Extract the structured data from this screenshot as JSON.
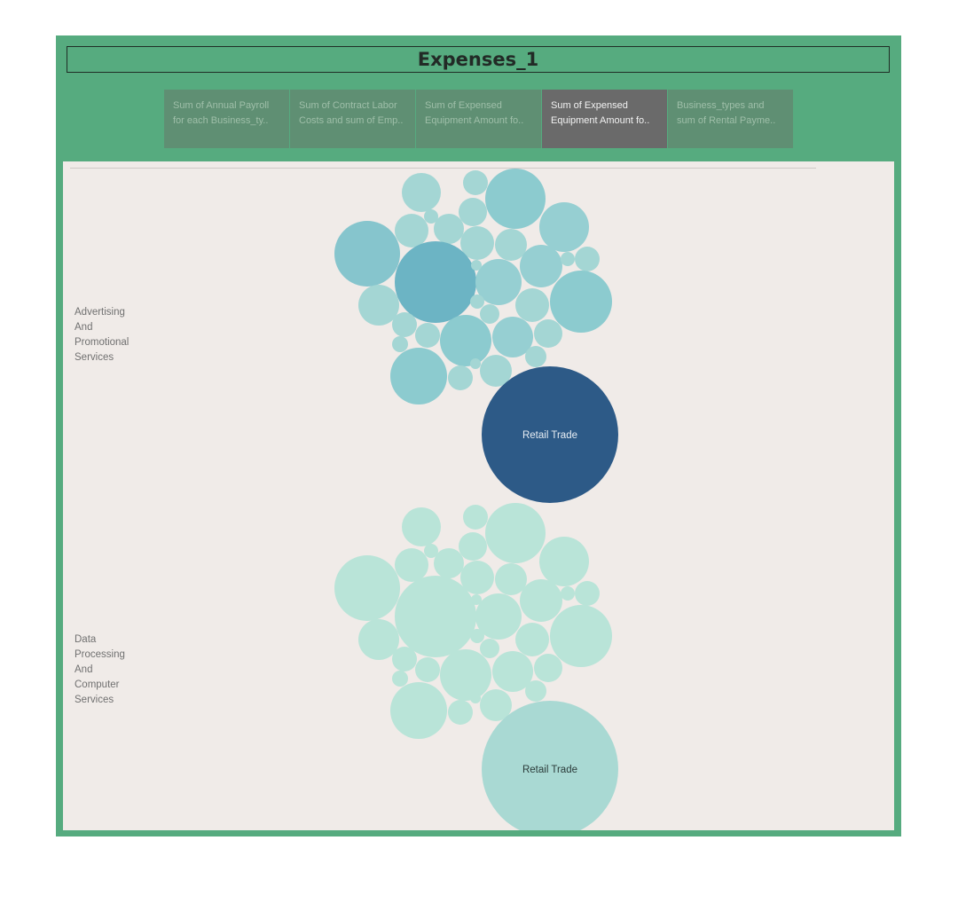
{
  "dashboard": {
    "title": "Expenses_1",
    "tabs": [
      {
        "line1": "Sum of Annual Payroll",
        "line2": "for each Business_ty..",
        "active": false
      },
      {
        "line1": "Sum of Contract Labor",
        "line2": "Costs and sum of Emp..",
        "active": false
      },
      {
        "line1": "Sum of Expensed",
        "line2": "Equipment Amount fo..",
        "active": false
      },
      {
        "line1": "Sum of Expensed",
        "line2": "Equipment Amount fo..",
        "active": true
      },
      {
        "line1": "Business_types and",
        "line2": "sum of Rental Payme..",
        "active": false
      }
    ]
  },
  "rows": [
    {
      "label": [
        "Advertising",
        "And",
        "Promotional",
        "Services"
      ],
      "highlight": "Retail Trade"
    },
    {
      "label": [
        "Data",
        "Processing",
        "And",
        "Computer",
        "Services"
      ],
      "highlight": "Retail Trade"
    }
  ],
  "colors": {
    "frame": "#56ab7f",
    "row1_highlight": "#2d5a87",
    "row2_highlight": "#a9d9d3",
    "row2_other": "#b9e4d8"
  }
}
